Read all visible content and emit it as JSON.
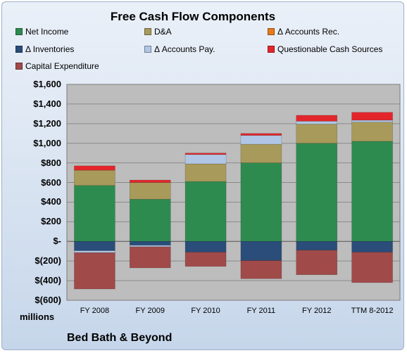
{
  "chart_data": {
    "type": "bar",
    "stacked": true,
    "title": "Free Cash Flow Components",
    "y_unit_label": "millions",
    "company": "Bed Bath & Beyond",
    "categories": [
      "FY 2008",
      "FY 2009",
      "FY 2010",
      "FY 2011",
      "FY 2012",
      "TTM 8-2012"
    ],
    "ylim": [
      -600,
      1600
    ],
    "y_ticks": [
      1600,
      1400,
      1200,
      1000,
      800,
      600,
      400,
      200,
      0,
      -200,
      -400,
      -600
    ],
    "y_tick_labels": [
      "$1,600",
      "$1,400",
      "$1,200",
      "$1,000",
      "$800",
      "$600",
      "$400",
      "$200",
      "$-",
      "$(200)",
      "$(400)",
      "$(600)"
    ],
    "grid": true,
    "legend_position": "top",
    "series": [
      {
        "name": "Net Income",
        "color": "#2e8b50",
        "values": [
          570,
          430,
          610,
          800,
          1000,
          1020
        ]
      },
      {
        "name": "D&A",
        "color": "#a89a5a",
        "values": [
          155,
          170,
          180,
          190,
          195,
          195
        ]
      },
      {
        "name": "Δ Accounts Rec.",
        "color": "#e87a1e",
        "values": [
          0,
          0,
          0,
          0,
          0,
          0
        ]
      },
      {
        "name": "Δ Inventories",
        "color": "#2a4d7a",
        "values": [
          -95,
          -40,
          -110,
          -195,
          -90,
          -110
        ]
      },
      {
        "name": "Δ Accounts Pay.",
        "color": "#b0c6e4",
        "values": [
          -20,
          -15,
          95,
          90,
          30,
          20
        ]
      },
      {
        "name": "Questionable Cash Sources",
        "color": "#e3262b",
        "values": [
          45,
          25,
          15,
          20,
          60,
          80
        ]
      },
      {
        "name": "Capital Expenditure",
        "color": "#a04a4a",
        "values": [
          -370,
          -215,
          -145,
          -185,
          -250,
          -310
        ]
      }
    ]
  }
}
